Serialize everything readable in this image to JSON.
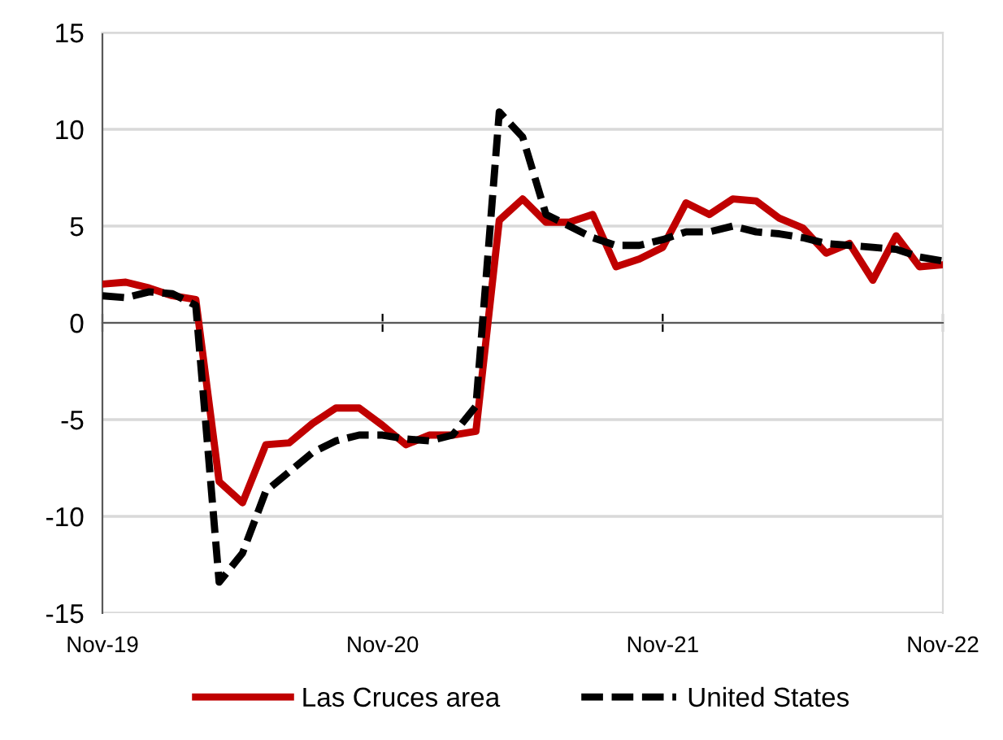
{
  "chart_data": {
    "type": "line",
    "x": [
      "2019-11",
      "2019-12",
      "2020-01",
      "2020-02",
      "2020-03",
      "2020-04",
      "2020-05",
      "2020-06",
      "2020-07",
      "2020-08",
      "2020-09",
      "2020-10",
      "2020-11",
      "2020-12",
      "2021-01",
      "2021-02",
      "2021-03",
      "2021-04",
      "2021-05",
      "2021-06",
      "2021-07",
      "2021-08",
      "2021-09",
      "2021-10",
      "2021-11",
      "2021-12",
      "2022-01",
      "2022-02",
      "2022-03",
      "2022-04",
      "2022-05",
      "2022-06",
      "2022-07",
      "2022-08",
      "2022-09",
      "2022-10",
      "2022-11"
    ],
    "series": [
      {
        "name": "Las Cruces area",
        "color": "#c00000",
        "line_style": "solid",
        "values": [
          2.0,
          2.1,
          1.8,
          1.4,
          1.2,
          -8.2,
          -9.3,
          -6.3,
          -6.2,
          -5.2,
          -4.4,
          -4.4,
          -5.3,
          -6.3,
          -5.8,
          -5.8,
          -5.6,
          5.3,
          6.4,
          5.2,
          5.2,
          5.6,
          2.9,
          3.3,
          3.9,
          6.2,
          5.6,
          6.4,
          6.3,
          5.4,
          4.9,
          3.6,
          4.1,
          2.2,
          4.5,
          2.9,
          3.0
        ]
      },
      {
        "name": "United States",
        "color": "#000000",
        "line_style": "dashed",
        "values": [
          1.4,
          1.3,
          1.6,
          1.5,
          0.9,
          -13.4,
          -11.9,
          -8.7,
          -7.7,
          -6.7,
          -6.1,
          -5.8,
          -5.8,
          -6.0,
          -6.1,
          -5.8,
          -4.3,
          10.9,
          9.6,
          5.6,
          5.0,
          4.4,
          4.0,
          4.0,
          4.3,
          4.7,
          4.7,
          5.0,
          4.7,
          4.6,
          4.4,
          4.1,
          4.0,
          3.9,
          3.8,
          3.4,
          3.2
        ]
      }
    ],
    "xlim": [
      "2019-11",
      "2022-11"
    ],
    "xticks": [
      {
        "value": "2019-11",
        "label": "Nov-19"
      },
      {
        "value": "2020-11",
        "label": "Nov-20"
      },
      {
        "value": "2021-11",
        "label": "Nov-21"
      },
      {
        "value": "2022-11",
        "label": "Nov-22"
      }
    ],
    "ylim": [
      -15,
      15
    ],
    "yticks": [
      -15,
      -10,
      -5,
      0,
      5,
      10,
      15
    ],
    "grid": "y",
    "legend": "bottom",
    "marker": "none"
  }
}
